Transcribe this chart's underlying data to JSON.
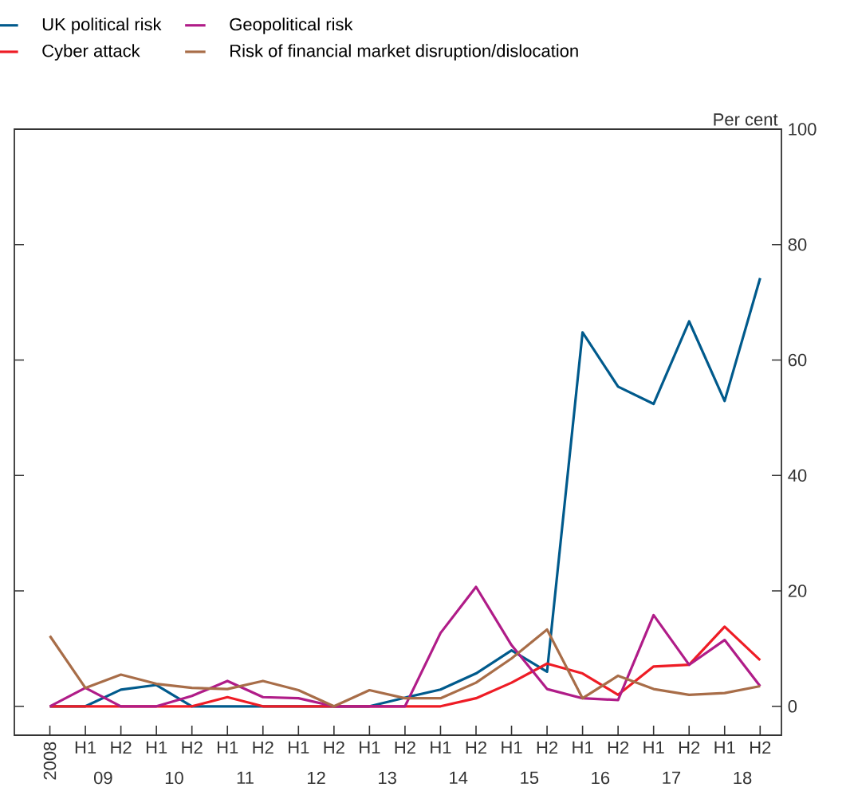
{
  "chart_data": {
    "type": "line",
    "ylabel": "Per cent",
    "categories": [
      "2008",
      "H1",
      "H2",
      "H1",
      "H2",
      "H1",
      "H2",
      "H1",
      "H2",
      "H1",
      "H2",
      "H1",
      "H2",
      "H1",
      "H2",
      "H1",
      "H2",
      "H1",
      "H2",
      "H1",
      "H2"
    ],
    "annotations": [
      "09",
      "10",
      "11",
      "12",
      "13",
      "14",
      "15",
      "16",
      "17",
      "18"
    ],
    "ylim": [
      -5,
      100
    ],
    "yticks": [
      0,
      20,
      40,
      60,
      80,
      100
    ],
    "tick_labels": "y2",
    "legend": "top left",
    "line_style": "solid",
    "marker": "none",
    "series": [
      {
        "name": "UK political risk",
        "color": "#005a8c",
        "values": [
          0,
          0,
          2.9,
          3.7,
          0,
          0,
          0,
          0,
          0,
          0,
          1.5,
          2.9,
          5.7,
          9.7,
          6.0,
          64.8,
          55.4,
          52.4,
          66.7,
          52.9,
          74.2
        ]
      },
      {
        "name": "Cyber attack",
        "color": "#ee1c25",
        "values": [
          0,
          0,
          0,
          0,
          0,
          1.6,
          0,
          0,
          0,
          0,
          0,
          0,
          1.4,
          4.1,
          7.4,
          5.7,
          2.0,
          6.9,
          7.2,
          13.8,
          8.0
        ]
      },
      {
        "name": "Geopolitical risk",
        "color": "#b01c88",
        "values": [
          0,
          3.2,
          0,
          0,
          1.8,
          4.4,
          1.6,
          1.4,
          0,
          0,
          0,
          12.7,
          20.7,
          10.6,
          3.0,
          1.4,
          1.1,
          15.8,
          7.2,
          11.5,
          3.5
        ]
      },
      {
        "name": "Risk of financial market disruption/dislocation",
        "color": "#a86d48",
        "values": [
          12.2,
          3.2,
          5.5,
          3.9,
          3.2,
          3.0,
          4.4,
          2.8,
          0,
          2.8,
          1.4,
          1.4,
          4.1,
          8.3,
          13.3,
          1.4,
          5.3,
          3.0,
          2.0,
          2.3,
          3.5
        ]
      }
    ]
  }
}
